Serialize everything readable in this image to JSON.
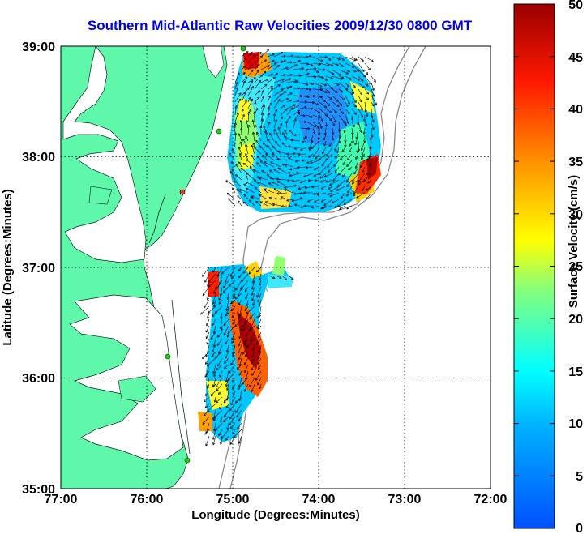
{
  "title": "Southern Mid-Atlantic Raw Velocities 2009/12/30 0800 GMT",
  "map": {
    "xlabel": "Longitude (Degrees:Minutes)",
    "ylabel": "Latitude (Degrees:Minutes)",
    "lon_ticks": [
      "77:00",
      "76:00",
      "75:00",
      "74:00",
      "73:00",
      "72:00"
    ],
    "lat_ticks": [
      "39:00",
      "38:00",
      "37:00",
      "36:00",
      "35:00"
    ],
    "land_color": "#5ff7aa",
    "water_color": "#ffffff",
    "grid": true
  },
  "colorbar": {
    "label": "Surface Velocity (cm/s)",
    "ticks": [
      "50",
      "45",
      "40",
      "35",
      "30",
      "25",
      "20",
      "15",
      "10",
      "5",
      "0"
    ],
    "range": [
      0,
      50
    ],
    "colormap": "jet"
  }
}
